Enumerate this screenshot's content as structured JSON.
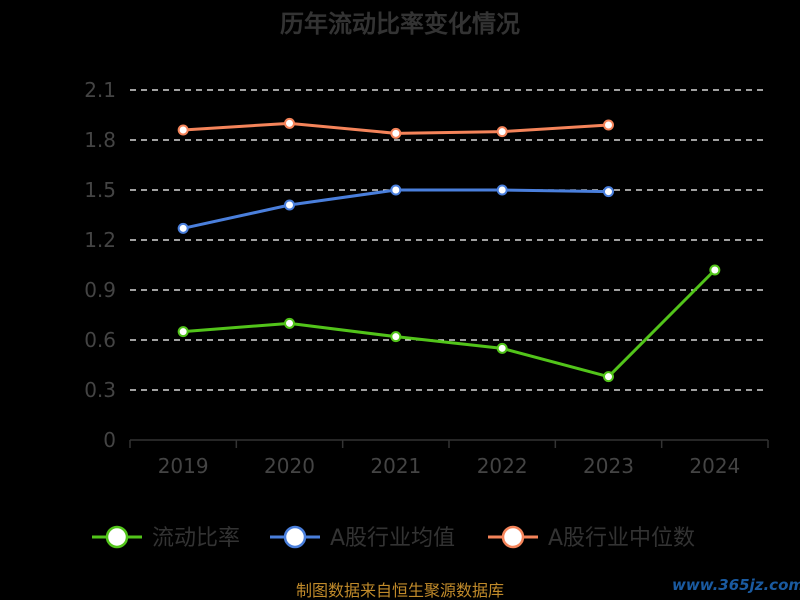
{
  "chart_data": {
    "type": "line",
    "title": "历年流动比率变化情况",
    "categories": [
      "2019",
      "2020",
      "2021",
      "2022",
      "2023",
      "2024"
    ],
    "y_ticks": [
      "0",
      "0.3",
      "0.6",
      "0.9",
      "1.2",
      "1.5",
      "1.8",
      "2.1"
    ],
    "ylim": [
      0,
      2.1
    ],
    "grid": true,
    "legend_position": "bottom",
    "series": [
      {
        "name": "流动比率",
        "color": "#52c41a",
        "values": [
          0.65,
          0.7,
          0.62,
          0.55,
          0.38,
          1.02
        ]
      },
      {
        "name": "A股行业均值",
        "color": "#4a7fdc",
        "values": [
          1.27,
          1.41,
          1.5,
          1.5,
          1.49,
          null
        ]
      },
      {
        "name": "A股行业中位数",
        "color": "#f5845a",
        "values": [
          1.86,
          1.9,
          1.84,
          1.85,
          1.89,
          null
        ]
      }
    ]
  },
  "footer": {
    "source": "制图数据来自恒生聚源数据库"
  },
  "watermark": {
    "text": "www.365jz.com"
  }
}
